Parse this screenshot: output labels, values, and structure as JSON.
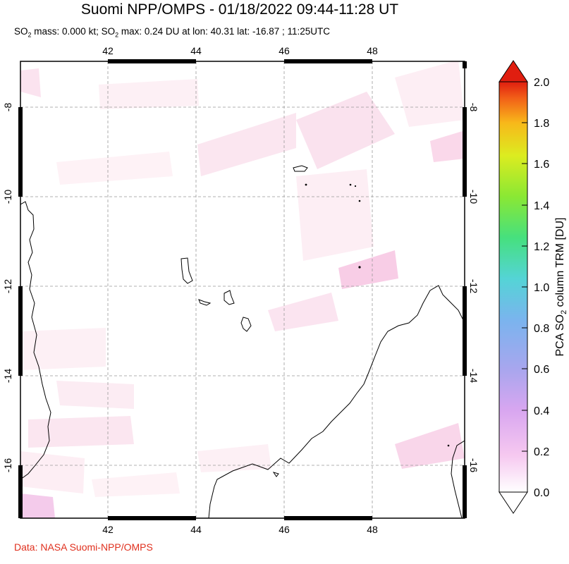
{
  "title": "Suomi NPP/OMPS - 01/18/2022 09:44-11:28 UT",
  "subtitle": {
    "prefix": "SO",
    "sub1": "2",
    "mid1": " mass: 0.000 kt; SO",
    "sub2": "2",
    "rest": " max: 0.24 DU at lon: 40.31 lat: -16.87 ; 11:25UTC"
  },
  "credit": "Data: NASA Suomi-NPP/OMPS",
  "map": {
    "lon_ticks": [
      "42",
      "44",
      "46",
      "48"
    ],
    "lat_ticks": [
      "-8",
      "-10",
      "-12",
      "-14",
      "-16"
    ],
    "lon_range": [
      40,
      50.2
    ],
    "lat_range": [
      -17.2,
      -7
    ]
  },
  "colorbar": {
    "label_prefix": "PCA SO",
    "label_sub": "2",
    "label_suffix": " column TRM [DU]",
    "ticks": [
      "0.0",
      "0.2",
      "0.4",
      "0.6",
      "0.8",
      "1.0",
      "1.2",
      "1.4",
      "1.6",
      "1.8",
      "2.0"
    ],
    "range": [
      0,
      2
    ],
    "colors": [
      "#ffffff",
      "#f6c8f0",
      "#d8a6f0",
      "#a8a6ee",
      "#7ab4ee",
      "#54d4d6",
      "#46e07e",
      "#8ae834",
      "#dcec20",
      "#f8b81a",
      "#f26018",
      "#e01e10"
    ]
  }
}
